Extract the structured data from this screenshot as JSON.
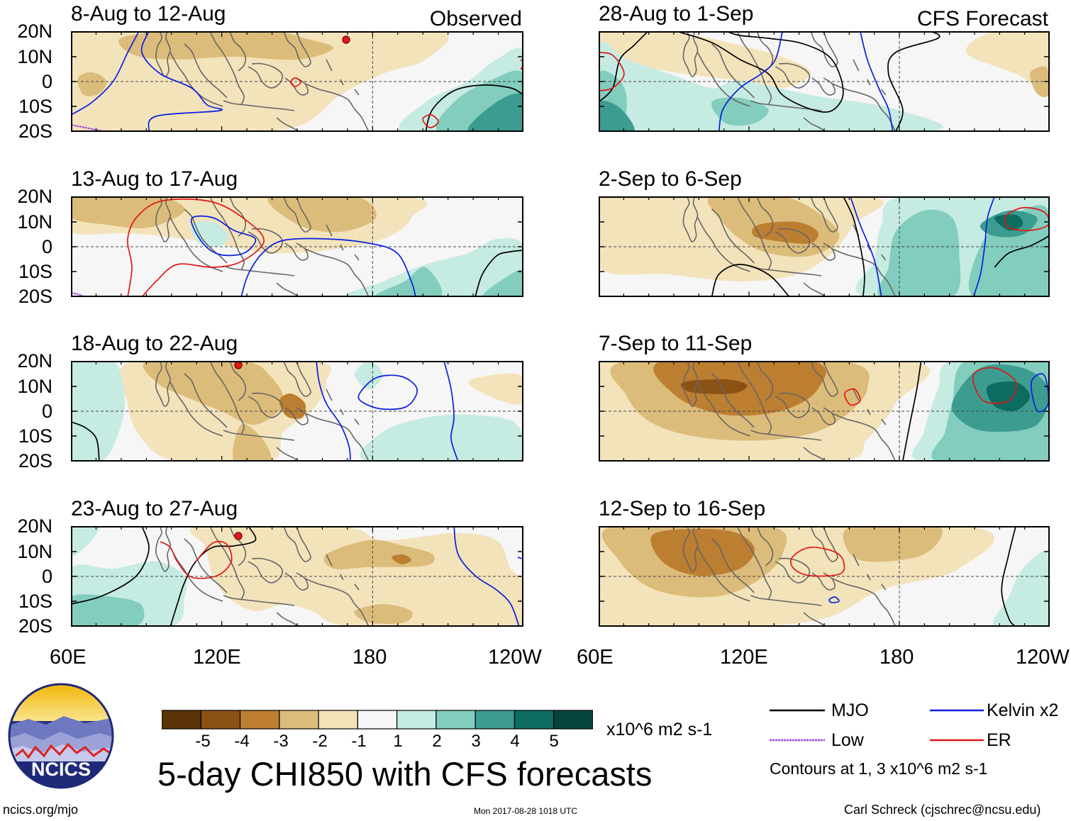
{
  "chart_data": {
    "type": "heatmap",
    "title": "5-day CHI850 with CFS forecasts",
    "units": "x10^6 m2 s-1",
    "column_tags": {
      "observed": "Observed",
      "forecast": "CFS Forecast"
    },
    "lat_ticks": [
      "20N",
      "10N",
      "0",
      "10S",
      "20S"
    ],
    "lon_ticks": [
      "60E",
      "120E",
      "180",
      "120W"
    ],
    "lat_range": [
      -20,
      20
    ],
    "lon_range_deg_east": [
      60,
      240
    ],
    "panels": [
      {
        "title": "8-Aug to 12-Aug",
        "column": "observed"
      },
      {
        "title": "13-Aug to 17-Aug",
        "column": "observed"
      },
      {
        "title": "18-Aug to 22-Aug",
        "column": "observed"
      },
      {
        "title": "23-Aug to 27-Aug",
        "column": "observed"
      },
      {
        "title": "28-Aug to 1-Sep",
        "column": "forecast"
      },
      {
        "title": "2-Sep to 6-Sep",
        "column": "forecast"
      },
      {
        "title": "7-Sep to 11-Sep",
        "column": "forecast"
      },
      {
        "title": "12-Sep to 16-Sep",
        "column": "forecast"
      }
    ],
    "colorbar": {
      "labels": [
        "-5",
        "-4",
        "-3",
        "-2",
        "-1",
        "1",
        "2",
        "3",
        "4",
        "5"
      ],
      "colors": [
        "#5a3406",
        "#8c5214",
        "#bc7e30",
        "#dcbc7a",
        "#f3e3bb",
        "#f6f6f6",
        "#c6ebe2",
        "#82cdbd",
        "#3c9c90",
        "#0c6c60",
        "#06443e"
      ]
    },
    "legend": [
      {
        "label": "MJO",
        "color": "#000000"
      },
      {
        "label": "Kelvin x2",
        "color": "#0b1fe0"
      },
      {
        "label": "Low",
        "color": "#a040e0"
      },
      {
        "label": "ER",
        "color": "#e01818"
      }
    ],
    "contour_note": "Contours at 1, 3 x10^6 m2 s-1"
  },
  "footer": {
    "logo_text": "NCICS",
    "url": "ncics.org/mjo",
    "timestamp": "Mon 2017-08-28 1018 UTC",
    "author": "Carl Schreck (cjschrec@ncsu.edu)"
  }
}
